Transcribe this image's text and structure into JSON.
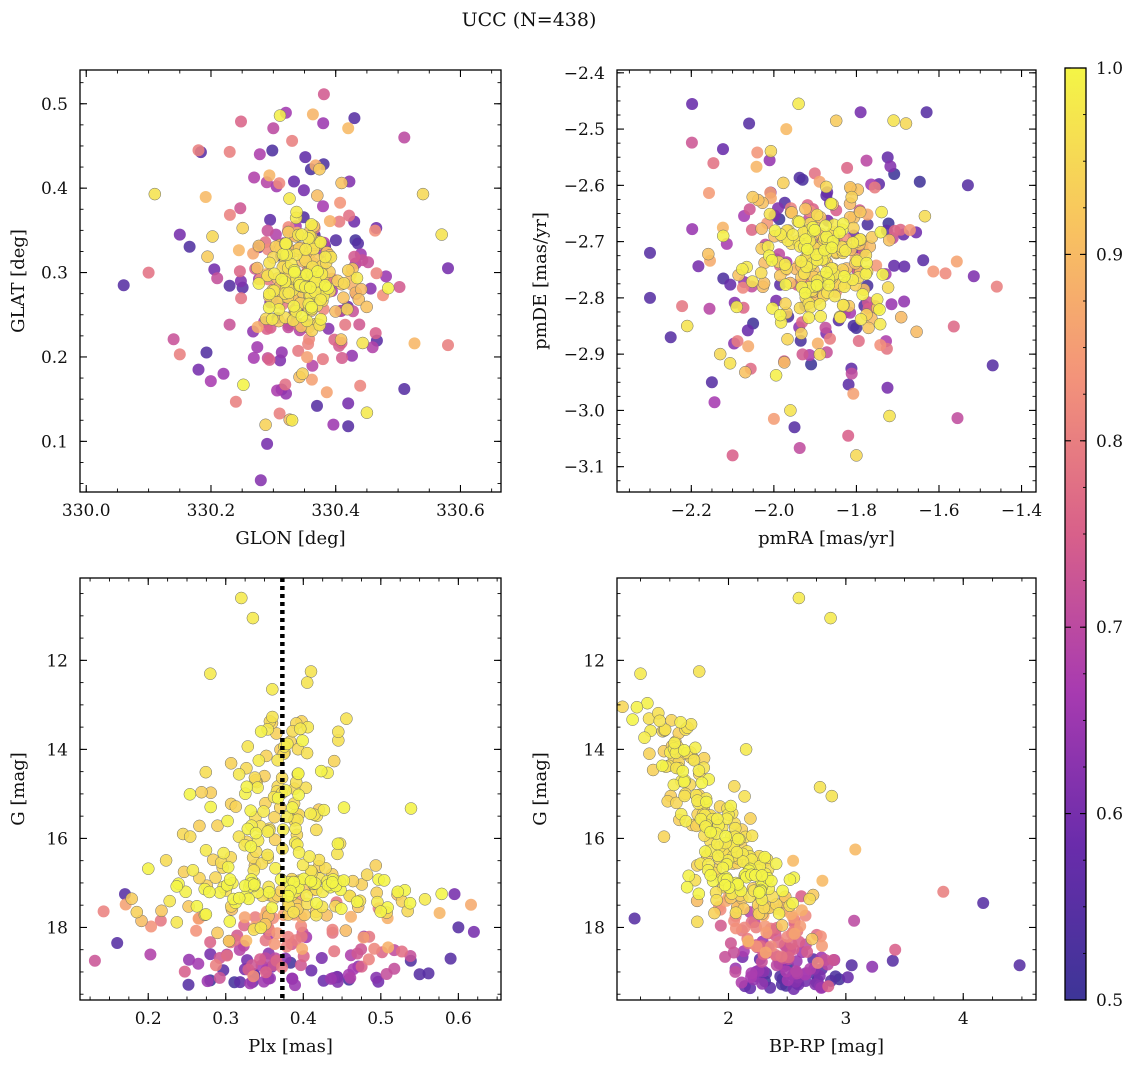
{
  "figure": {
    "title": "UCC (N=438)"
  },
  "colorbar": {
    "range": [
      0.5,
      1.0
    ],
    "ticks": [
      0.5,
      0.6,
      0.7,
      0.8,
      0.9,
      1.0
    ],
    "tick_labels": [
      "0.5",
      "0.6",
      "0.7",
      "0.8",
      "0.9",
      "1.0"
    ],
    "colormap": "plasma (truncated)",
    "stops": [
      "#3d3597",
      "#6a2cab",
      "#a83bb0",
      "#d8608a",
      "#f3937a",
      "#f8c45f",
      "#f4f546"
    ]
  },
  "marker_edge_color": "#6b6b6b",
  "chart_data": [
    {
      "id": "radec",
      "type": "scatter",
      "title": "",
      "xlabel": "GLON [deg]",
      "ylabel": "GLAT [deg]",
      "xlim": [
        329.99,
        330.665
      ],
      "ylim": [
        0.04,
        0.54
      ],
      "xticks": [
        330.0,
        330.2,
        330.4,
        330.6
      ],
      "xtick_labels": [
        "330.0",
        "330.2",
        "330.4",
        "330.6"
      ],
      "yticks": [
        0.1,
        0.2,
        0.3,
        0.4,
        0.5
      ],
      "ytick_labels": [
        "0.1",
        "0.2",
        "0.3",
        "0.4",
        "0.5"
      ],
      "cluster": {
        "center": [
          330.345,
          0.295
        ],
        "spread": [
          0.07,
          0.085
        ],
        "count": 438
      },
      "points": [
        [
          330.06,
          0.285,
          0.55
        ],
        [
          330.11,
          0.393,
          0.97
        ],
        [
          330.15,
          0.345,
          0.6
        ],
        [
          330.14,
          0.221,
          0.72
        ],
        [
          330.1,
          0.3,
          0.78
        ],
        [
          330.29,
          0.097,
          0.6
        ],
        [
          330.31,
          0.133,
          0.8
        ],
        [
          330.33,
          0.125,
          0.98
        ],
        [
          330.37,
          0.142,
          0.55
        ],
        [
          330.42,
          0.118,
          0.55
        ],
        [
          330.42,
          0.145,
          0.6
        ],
        [
          330.45,
          0.134,
          0.98
        ],
        [
          330.51,
          0.162,
          0.55
        ],
        [
          330.58,
          0.214,
          0.8
        ],
        [
          330.58,
          0.305,
          0.6
        ],
        [
          330.57,
          0.345,
          0.97
        ],
        [
          330.54,
          0.393,
          0.95
        ],
        [
          330.51,
          0.46,
          0.7
        ],
        [
          330.42,
          0.471,
          0.9
        ],
        [
          330.43,
          0.483,
          0.55
        ],
        [
          330.38,
          0.477,
          0.65
        ],
        [
          330.3,
          0.471,
          0.7
        ],
        [
          330.33,
          0.456,
          0.8
        ],
        [
          330.23,
          0.443,
          0.8
        ],
        [
          330.18,
          0.445,
          0.8
        ],
        [
          330.24,
          0.147,
          0.8
        ],
        [
          330.18,
          0.185,
          0.6
        ],
        [
          330.15,
          0.203,
          0.8
        ],
        [
          330.22,
          0.18,
          0.65
        ]
      ]
    },
    {
      "id": "pm",
      "type": "scatter",
      "title": "",
      "xlabel": "pmRA [mas/yr]",
      "ylabel": "pmDE [mas/yr]",
      "xlim": [
        -2.38,
        -1.365
      ],
      "ylim": [
        -3.145,
        -2.395
      ],
      "xticks": [
        -2.2,
        -2.0,
        -1.8,
        -1.6,
        -1.4
      ],
      "xtick_labels": [
        "−2.2",
        "−2.0",
        "−1.8",
        "−1.6",
        "−1.4"
      ],
      "yticks": [
        -3.1,
        -3.0,
        -2.9,
        -2.8,
        -2.7,
        -2.6,
        -2.5,
        -2.4
      ],
      "ytick_labels": [
        "−3.1",
        "−3.0",
        "−2.9",
        "−2.8",
        "−2.7",
        "−2.6",
        "−2.5",
        "−2.4"
      ],
      "cluster": {
        "center": [
          -1.89,
          -2.74
        ],
        "spread": [
          0.14,
          0.11
        ],
        "count": 438
      },
      "points": [
        [
          -2.3,
          -2.72,
          0.55
        ],
        [
          -2.3,
          -2.8,
          0.55
        ],
        [
          -2.25,
          -2.87,
          0.55
        ],
        [
          -2.1,
          -3.08,
          0.75
        ],
        [
          -1.95,
          -3.03,
          0.55
        ],
        [
          -1.96,
          -3.0,
          0.97
        ],
        [
          -2.0,
          -3.015,
          0.85
        ],
        [
          -1.72,
          -3.01,
          0.97
        ],
        [
          -1.8,
          -3.08,
          0.95
        ],
        [
          -1.82,
          -3.045,
          0.75
        ],
        [
          -1.47,
          -2.92,
          0.55
        ],
        [
          -1.46,
          -2.78,
          0.8
        ],
        [
          -1.53,
          -2.6,
          0.55
        ],
        [
          -1.63,
          -2.47,
          0.55
        ],
        [
          -1.71,
          -2.485,
          0.97
        ],
        [
          -1.68,
          -2.49,
          0.95
        ],
        [
          -1.79,
          -2.47,
          0.6
        ],
        [
          -1.94,
          -2.455,
          0.98
        ],
        [
          -2.06,
          -2.49,
          0.55
        ],
        [
          -1.97,
          -2.5,
          0.9
        ],
        [
          -2.21,
          -2.85,
          0.97
        ],
        [
          -2.15,
          -2.95,
          0.55
        ],
        [
          -2.13,
          -2.9,
          0.95
        ]
      ]
    },
    {
      "id": "plx",
      "type": "scatter",
      "title": "",
      "xlabel": "Plx [mas]",
      "ylabel": "G [mag]",
      "xlim": [
        0.112,
        0.655
      ],
      "ylim": [
        19.63,
        10.15
      ],
      "y_inverted": true,
      "xticks": [
        0.2,
        0.3,
        0.4,
        0.5,
        0.6
      ],
      "xtick_labels": [
        "0.2",
        "0.3",
        "0.4",
        "0.5",
        "0.6"
      ],
      "yticks": [
        12,
        14,
        16,
        18
      ],
      "ytick_labels": [
        "12",
        "14",
        "16",
        "18"
      ],
      "reference_line": {
        "x": 0.373,
        "style": "dotted",
        "color": "#000000"
      },
      "cluster": {
        "center_plx": 0.372,
        "plx_spread": 0.065,
        "G_range": [
          10.5,
          19.4
        ],
        "count": 438
      },
      "points": [
        [
          0.32,
          10.6,
          0.98
        ],
        [
          0.335,
          11.05,
          0.98
        ],
        [
          0.28,
          12.3,
          0.98
        ],
        [
          0.41,
          12.25,
          0.97
        ],
        [
          0.36,
          12.65,
          0.98
        ],
        [
          0.405,
          12.5,
          0.97
        ],
        [
          0.595,
          17.25,
          0.6
        ],
        [
          0.6,
          18.0,
          0.55
        ],
        [
          0.59,
          18.7,
          0.55
        ],
        [
          0.16,
          18.35,
          0.55
        ],
        [
          0.17,
          17.25,
          0.55
        ],
        [
          0.55,
          19.05,
          0.55
        ],
        [
          0.28,
          18.6,
          0.6
        ],
        [
          0.355,
          19.15,
          0.6
        ],
        [
          0.245,
          15.9,
          0.95
        ],
        [
          0.62,
          18.1,
          0.6
        ]
      ]
    },
    {
      "id": "cmd",
      "type": "scatter",
      "title": "",
      "xlabel": "BP-RP [mag]",
      "ylabel": "G [mag]",
      "xlim": [
        1.05,
        4.62
      ],
      "ylim": [
        19.63,
        10.15
      ],
      "y_inverted": true,
      "xticks": [
        2,
        3,
        4
      ],
      "xtick_labels": [
        "2",
        "3",
        "4"
      ],
      "yticks": [
        12,
        14,
        16,
        18
      ],
      "ytick_labels": [
        "12",
        "14",
        "16",
        "18"
      ],
      "cluster": {
        "sequence": "main sequence from G≈12.3 (BP-RP≈1.3) to G≈19.3 (BP-RP≈2.7)",
        "count": 438
      },
      "points": [
        [
          2.6,
          10.6,
          0.98
        ],
        [
          2.87,
          11.05,
          0.98
        ],
        [
          1.25,
          12.3,
          0.98
        ],
        [
          1.75,
          12.25,
          0.97
        ],
        [
          1.2,
          17.8,
          0.55
        ],
        [
          3.83,
          17.2,
          0.8
        ],
        [
          4.17,
          17.45,
          0.55
        ],
        [
          4.48,
          18.85,
          0.55
        ],
        [
          3.4,
          18.75,
          0.55
        ],
        [
          3.42,
          18.5,
          0.75
        ],
        [
          3.05,
          18.85,
          0.55
        ],
        [
          3.07,
          17.85,
          0.7
        ],
        [
          3.08,
          16.25,
          0.9
        ],
        [
          2.88,
          15.05,
          0.97
        ],
        [
          2.78,
          14.85,
          0.97
        ],
        [
          2.15,
          14.0,
          0.98
        ],
        [
          2.3,
          16.5,
          0.65
        ],
        [
          2.55,
          16.5,
          0.9
        ],
        [
          2.62,
          17.3,
          0.75
        ],
        [
          2.8,
          16.95,
          0.9
        ]
      ]
    }
  ]
}
